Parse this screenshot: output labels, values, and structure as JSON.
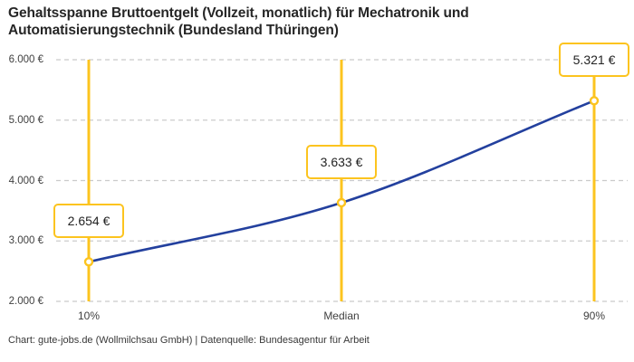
{
  "title": "Gehaltsspanne Bruttoentgelt (Vollzeit, monatlich) für Mechatronik und Automatisierungstechnik (Bundesland Thüringen)",
  "footer": "Chart: gute-jobs.de (Wollmilchsau GmbH) | Datenquelle: Bundesagentur für Arbeit",
  "colors": {
    "accent": "#FCC41F",
    "series_line": "#23409E",
    "grid": "#CBCBCB",
    "title_text": "#262626",
    "axis_text": "#3F3F3F",
    "background": "#FFFFFF"
  },
  "chart_data": {
    "type": "line",
    "title": "Gehaltsspanne Bruttoentgelt (Vollzeit, monatlich) für Mechatronik und Automatisierungstechnik (Bundesland Thüringen)",
    "categories": [
      "10%",
      "Median",
      "90%"
    ],
    "values": [
      2654,
      3633,
      5321
    ],
    "value_labels": [
      "2.654 €",
      "3.633 €",
      "5.321 €"
    ],
    "ylim": [
      2000,
      6000
    ],
    "y_tick_values": [
      2000,
      3000,
      4000,
      5000,
      6000
    ],
    "y_tick_labels": [
      "2.000 €",
      "3.000 €",
      "4.000 €",
      "5.000 €",
      "6.000 €"
    ],
    "xlabel": "",
    "ylabel": "",
    "grid": "horizontal-dashed",
    "legend": "none",
    "marker": "open-circle",
    "annotations": "value label box above each point; vertical accent line at each category"
  }
}
